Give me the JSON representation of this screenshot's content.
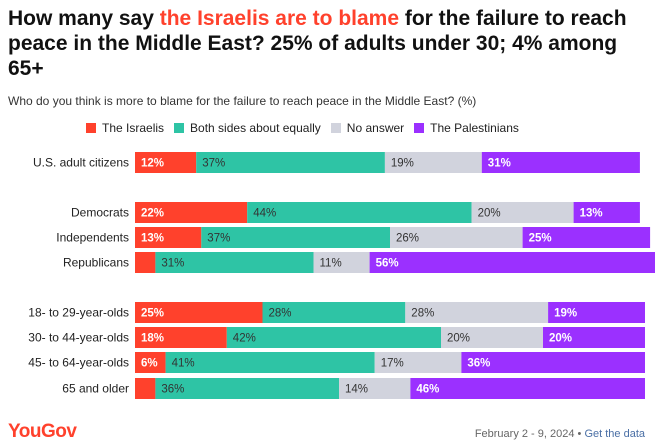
{
  "headline": {
    "part1": "How many say ",
    "highlight": "the Israelis are to blame",
    "part2": " for the failure to reach peace in the Middle East? 25% of adults under 30; 4% among 65+"
  },
  "subtitle": "Who do you think is more to blame for the failure to reach peace in the Middle East? (%)",
  "footer": {
    "brand": "YouGov",
    "date": "February 2 - 9, 2024",
    "separator": " • ",
    "link": "Get the data"
  },
  "chart_data": {
    "type": "bar",
    "orientation": "horizontal",
    "stacked": true,
    "title": "Who do you think is more to blame for the failure to reach peace in the Middle East? (%)",
    "categories": [
      "U.S. adult citizens",
      "Democrats",
      "Independents",
      "Republicans",
      "18- to 29-year-olds",
      "30- to 44-year-olds",
      "45- to 64-year-olds",
      "65 and older"
    ],
    "groups": [
      [
        0
      ],
      [
        1,
        2,
        3
      ],
      [
        4,
        5,
        6,
        7
      ]
    ],
    "series": [
      {
        "name": "The Israelis",
        "color": "#ff412c",
        "values": [
          12,
          22,
          13,
          4,
          25,
          18,
          6,
          4
        ],
        "labels": [
          "12%",
          "22%",
          "13%",
          "",
          "25%",
          "18%",
          "6%",
          ""
        ]
      },
      {
        "name": "Both sides about equally",
        "color": "#2ec4a5",
        "values": [
          37,
          44,
          37,
          31,
          28,
          42,
          41,
          36
        ],
        "labels": [
          "37%",
          "44%",
          "37%",
          "31%",
          "28%",
          "42%",
          "41%",
          "36%"
        ]
      },
      {
        "name": "No answer",
        "color": "#d1d3dd",
        "values": [
          19,
          20,
          26,
          11,
          28,
          20,
          17,
          14
        ],
        "labels": [
          "19%",
          "20%",
          "26%",
          "11%",
          "28%",
          "20%",
          "17%",
          "14%"
        ]
      },
      {
        "name": "The Palestinians",
        "color": "#9b30ff",
        "values": [
          31,
          13,
          25,
          56,
          19,
          20,
          36,
          46
        ],
        "labels": [
          "31%",
          "13%",
          "25%",
          "56%",
          "19%",
          "20%",
          "36%",
          "46%"
        ]
      }
    ],
    "xlim": [
      0,
      100
    ],
    "legend": "top"
  }
}
